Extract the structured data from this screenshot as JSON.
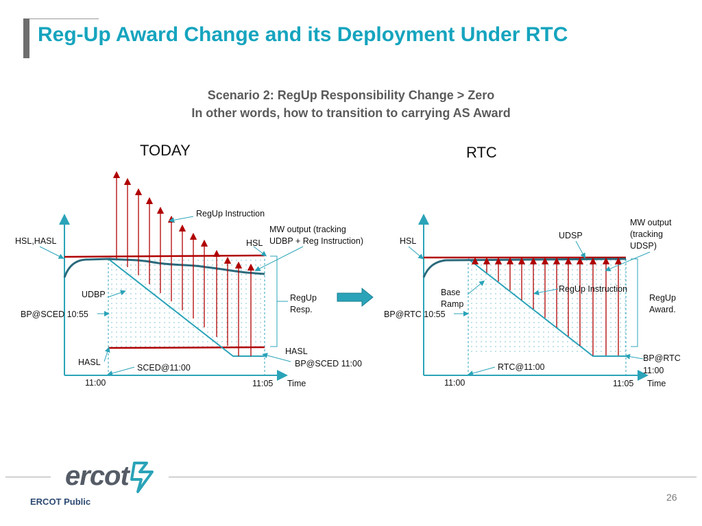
{
  "title": "Reg-Up Award Change and its Deployment Under RTC",
  "subtitle_line1": "Scenario 2: RegUp Responsibility Change > Zero",
  "subtitle_line2": "In other words, how to transition to carrying AS Award",
  "colors": {
    "title": "#16a4be",
    "axis": "#2aa3b8",
    "red": "#b00000",
    "ramp": "#2aa3b8",
    "output": "#2a6a7c"
  },
  "today": {
    "heading": "TODAY",
    "regup_instruction": "RegUp Instruction",
    "mw_output_line1": "MW output (tracking",
    "mw_output_line2": "UDBP + Reg Instruction)",
    "hsl_hasl": "HSL,HASL",
    "hsl": "HSL",
    "udbp": "UDBP",
    "bp_sced_1055": "BP@SCED 10:55",
    "regup_resp_line1": "RegUp",
    "regup_resp_line2": "Resp.",
    "hasl_right": "HASL",
    "hasl_left": "HASL",
    "bp_sced_1100": "BP@SCED 11:00",
    "sced_1100": "SCED@11:00",
    "t_start": "11:00",
    "t_end": "11:05",
    "time": "Time"
  },
  "rtc": {
    "heading": "RTC",
    "mw_output_line1": "MW output",
    "mw_output_line2": "(tracking",
    "mw_output_line3": "UDSP)",
    "udsp": "UDSP",
    "hsl": "HSL",
    "base_line1": "Base",
    "base_line2": "Ramp",
    "regup_instruction": "RegUp Instruction",
    "regup_award_line1": "RegUp",
    "regup_award_line2": "Award.",
    "bp_rtc_1055": "BP@RTC 10:55",
    "rtc_1100": "RTC@11:00",
    "bp_rtc_1100_line1": "BP@RTC",
    "bp_rtc_1100_line2": "11:00",
    "t_start": "11:00",
    "t_end": "11:05",
    "time": "Time"
  },
  "footer": {
    "logo": "ercot",
    "public": "ERCOT Public",
    "page": "26"
  }
}
